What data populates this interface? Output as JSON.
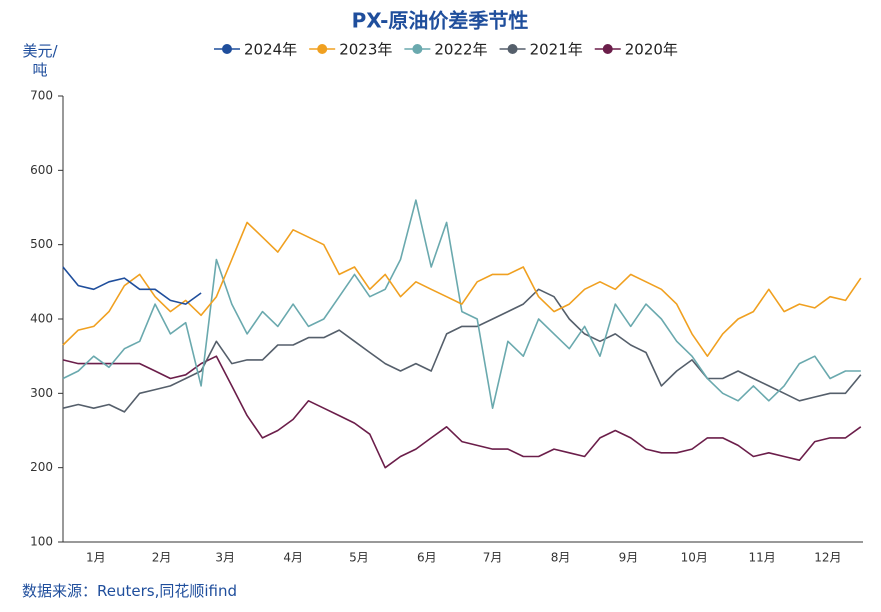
{
  "chart_data": {
    "type": "line",
    "title": "PX-原油价差季节性",
    "y_label": "美元/吨",
    "source": "数据来源：Reuters,同花顺ifind",
    "x": [
      1,
      8,
      15,
      22,
      29,
      36,
      43,
      50,
      57,
      64,
      71,
      78,
      85,
      92,
      99,
      106,
      113,
      120,
      127,
      134,
      141,
      148,
      155,
      162,
      169,
      176,
      183,
      190,
      197,
      204,
      211,
      218,
      225,
      232,
      239,
      246,
      253,
      260,
      267,
      274,
      281,
      288,
      295,
      302,
      309,
      316,
      323,
      330,
      337,
      344,
      351,
      358,
      365
    ],
    "xlim": [
      1,
      366
    ],
    "xticks": [
      {
        "value": 16,
        "label": "1月"
      },
      {
        "value": 46,
        "label": "2月"
      },
      {
        "value": 75,
        "label": "3月"
      },
      {
        "value": 106,
        "label": "4月"
      },
      {
        "value": 136,
        "label": "5月"
      },
      {
        "value": 167,
        "label": "6月"
      },
      {
        "value": 197,
        "label": "7月"
      },
      {
        "value": 228,
        "label": "8月"
      },
      {
        "value": 259,
        "label": "9月"
      },
      {
        "value": 289,
        "label": "10月"
      },
      {
        "value": 320,
        "label": "11月"
      },
      {
        "value": 350,
        "label": "12月"
      }
    ],
    "ylim": [
      100,
      700
    ],
    "yticks": [
      100,
      200,
      300,
      400,
      500,
      600,
      700
    ],
    "grid": false,
    "series": [
      {
        "name": "2024年",
        "color": "#1f4e9c",
        "values": [
          470,
          445,
          440,
          450,
          455,
          440,
          440,
          425,
          420,
          435,
          null,
          null,
          null,
          null,
          null,
          null,
          null,
          null,
          null,
          null,
          null,
          null,
          null,
          null,
          null,
          null,
          null,
          null,
          null,
          null,
          null,
          null,
          null,
          null,
          null,
          null,
          null,
          null,
          null,
          null,
          null,
          null,
          null,
          null,
          null,
          null,
          null,
          null,
          null,
          null,
          null,
          null,
          null
        ]
      },
      {
        "name": "2023年",
        "color": "#f0a020",
        "values": [
          365,
          385,
          390,
          410,
          445,
          460,
          430,
          410,
          425,
          405,
          430,
          480,
          530,
          510,
          490,
          520,
          510,
          500,
          460,
          470,
          440,
          460,
          430,
          450,
          440,
          430,
          420,
          450,
          460,
          460,
          470,
          430,
          410,
          420,
          440,
          450,
          440,
          460,
          450,
          440,
          420,
          380,
          350,
          380,
          400,
          410,
          440,
          410,
          420,
          415,
          430,
          425,
          455
        ]
      },
      {
        "name": "2022年",
        "color": "#6aa9ae",
        "values": [
          320,
          330,
          350,
          335,
          360,
          370,
          420,
          380,
          395,
          310,
          480,
          420,
          380,
          410,
          390,
          420,
          390,
          400,
          430,
          460,
          430,
          440,
          480,
          560,
          470,
          530,
          410,
          400,
          280,
          370,
          350,
          400,
          380,
          360,
          390,
          350,
          420,
          390,
          420,
          400,
          370,
          350,
          320,
          300,
          290,
          310,
          290,
          310,
          340,
          350,
          320,
          330,
          330
        ]
      },
      {
        "name": "2021年",
        "color": "#555f6b",
        "values": [
          280,
          285,
          280,
          285,
          275,
          300,
          305,
          310,
          320,
          330,
          370,
          340,
          345,
          345,
          365,
          365,
          375,
          375,
          385,
          370,
          355,
          340,
          330,
          340,
          330,
          380,
          390,
          390,
          400,
          410,
          420,
          440,
          430,
          400,
          380,
          370,
          380,
          365,
          355,
          310,
          330,
          345,
          320,
          320,
          330,
          320,
          310,
          300,
          290,
          295,
          300,
          300,
          325
        ]
      },
      {
        "name": "2020年",
        "color": "#6b1e4a",
        "values": [
          345,
          340,
          340,
          340,
          340,
          340,
          330,
          320,
          325,
          340,
          350,
          310,
          270,
          240,
          250,
          265,
          290,
          280,
          270,
          260,
          245,
          200,
          215,
          225,
          240,
          255,
          235,
          230,
          225,
          225,
          215,
          215,
          225,
          220,
          215,
          240,
          250,
          240,
          225,
          220,
          220,
          225,
          240,
          240,
          230,
          215,
          220,
          215,
          210,
          235,
          240,
          240,
          255
        ]
      }
    ]
  }
}
